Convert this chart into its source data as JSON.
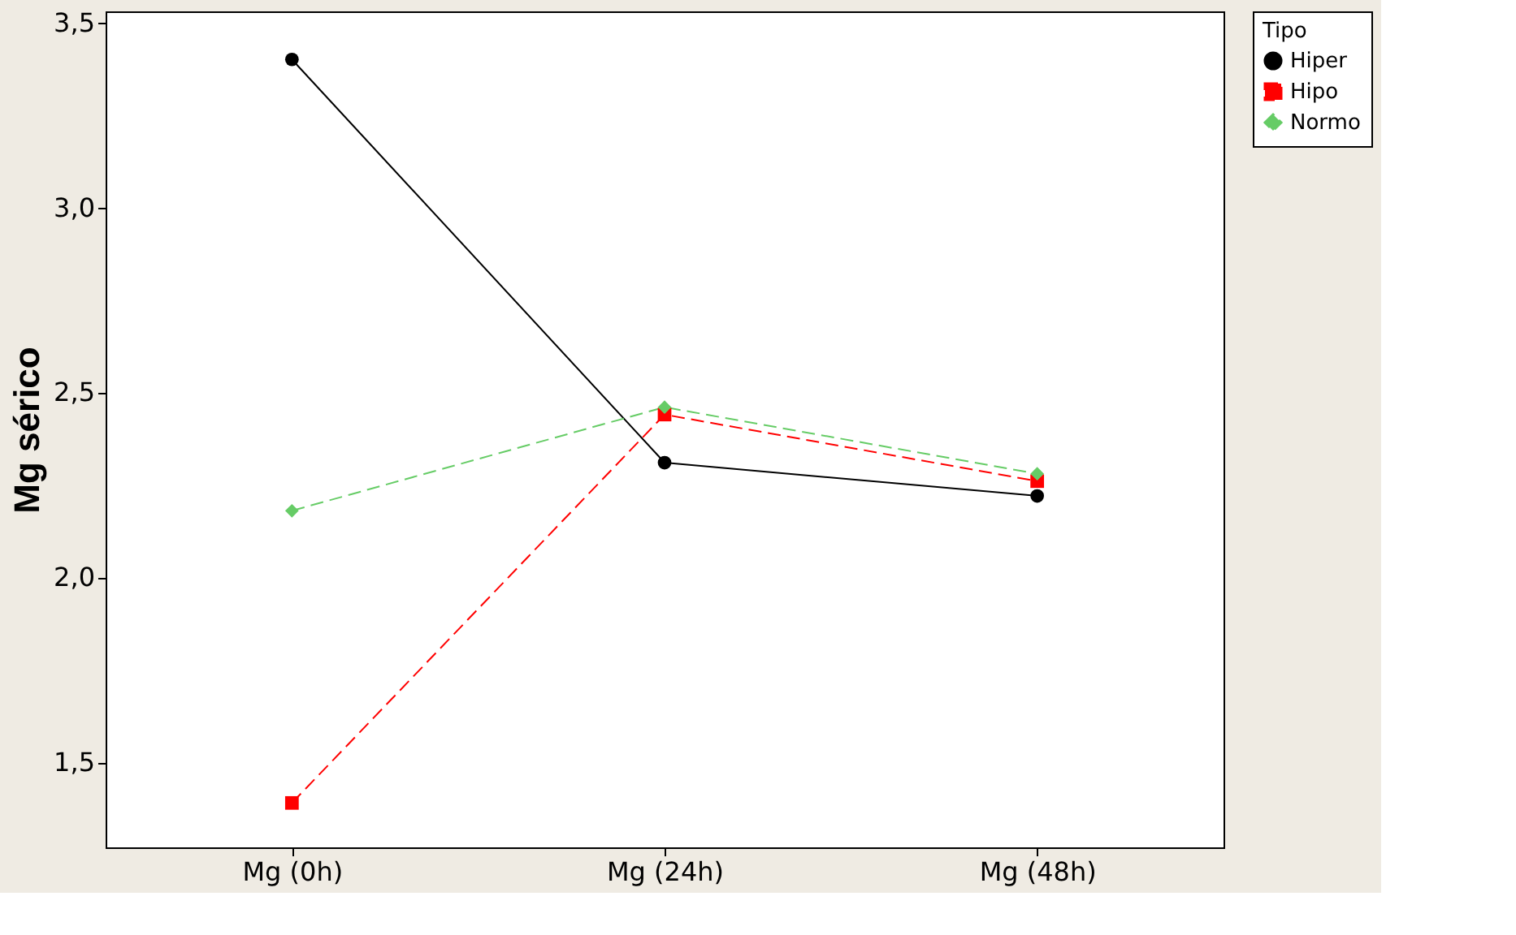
{
  "chart_data": {
    "type": "line",
    "ylabel": "Mg sérico",
    "legend_title": "Tipo",
    "legend": "top right",
    "grid": false,
    "categories": [
      "Mg (0h)",
      "Mg (24h)",
      "Mg (48h)"
    ],
    "ylim": [
      1.27,
      3.53
    ],
    "yticks": [
      {
        "value": 1.5,
        "label": "1,5"
      },
      {
        "value": 2.0,
        "label": "2,0"
      },
      {
        "value": 2.5,
        "label": "2,5"
      },
      {
        "value": 3.0,
        "label": "3,0"
      },
      {
        "value": 3.5,
        "label": "3,5"
      }
    ],
    "series": [
      {
        "name": "Hiper",
        "color": "#000000",
        "marker": "circle",
        "line_style": "solid",
        "values": [
          3.4,
          2.31,
          2.22
        ]
      },
      {
        "name": "Hipo",
        "color": "#ff0000",
        "marker": "square",
        "line_style": "dashed",
        "values": [
          1.39,
          2.44,
          2.26
        ]
      },
      {
        "name": "Normo",
        "color": "#66cc66",
        "marker": "diamond",
        "line_style": "dashed",
        "values": [
          2.18,
          2.46,
          2.28
        ]
      }
    ]
  }
}
